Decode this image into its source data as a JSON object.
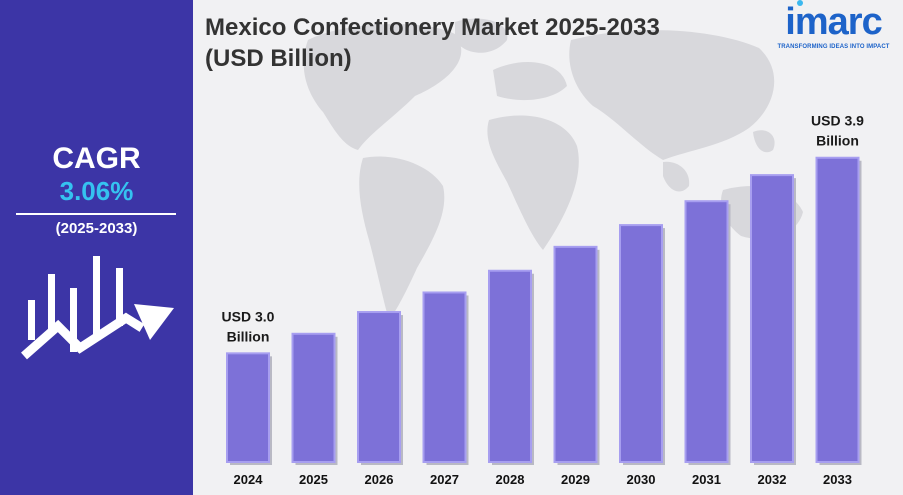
{
  "sidebar": {
    "cagr_label": "CAGR",
    "cagr_value": "3.06%",
    "cagr_period": "(2025-2033)",
    "icon": "growth-chart-arrow-icon"
  },
  "header": {
    "title": "Mexico Confectionery Market 2025-2033 (USD Billion)"
  },
  "logo": {
    "word": "imarc",
    "tagline": "TRANSFORMING IDEAS INTO IMPACT"
  },
  "background": {
    "icon": "world-map-icon"
  },
  "colors": {
    "sidebar": "#3c35a6",
    "bar_fill": "#7d71d8",
    "bar_edge": "#a79ef0",
    "accent": "#35c2f0",
    "brand": "#1d63c9"
  },
  "chart_data": {
    "type": "bar",
    "categories": [
      "2024",
      "2025",
      "2026",
      "2027",
      "2028",
      "2029",
      "2030",
      "2031",
      "2032",
      "2033"
    ],
    "values": [
      3.0,
      3.09,
      3.19,
      3.28,
      3.38,
      3.49,
      3.59,
      3.7,
      3.82,
      3.9
    ],
    "ylim": [
      2.5,
      4.0
    ],
    "grid": false,
    "annotations": [
      {
        "category": "2024",
        "lines": [
          "USD 3.0",
          "Billion"
        ]
      },
      {
        "category": "2033",
        "lines": [
          "USD 3.9",
          "Billion"
        ]
      }
    ]
  }
}
